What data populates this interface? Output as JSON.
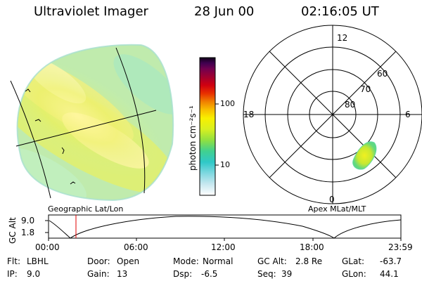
{
  "header": {
    "instrument": "Ultraviolet Imager",
    "date": "28 Jun 00",
    "time": "02:16:05 UT"
  },
  "image_panel": {
    "caption": "Geographic Lat/Lon"
  },
  "colorbar": {
    "unit": "photon cm⁻²s⁻¹",
    "ticks": [
      "100",
      "10"
    ],
    "colors": [
      "#ffffff",
      "#c8e8f0",
      "#80d8e0",
      "#30c8c8",
      "#40d090",
      "#90e040",
      "#d8f020",
      "#f8f000",
      "#f8c000",
      "#f08000",
      "#e83000",
      "#d00010",
      "#a00030",
      "#700050",
      "#400050",
      "#100018"
    ]
  },
  "polar_plot": {
    "caption": "Apex MLat/MLT",
    "hour_labels": {
      "top": "12",
      "left": "18",
      "right": "6",
      "bottom": "0"
    },
    "lat_labels": [
      "60",
      "70",
      "80"
    ]
  },
  "altitude_plot": {
    "ylabel": "GC Alt",
    "yticks": [
      "9.0",
      "1.8"
    ],
    "xticks": [
      "00:00",
      "06:00",
      "12:00",
      "18:00",
      "23:59"
    ]
  },
  "status": {
    "flt_label": "Flt:",
    "flt_value": "LBHL",
    "ip_label": "IP:",
    "ip_value": "9.0",
    "door_label": "Door:",
    "door_value": "Open",
    "gain_label": "Gain:",
    "gain_value": "13",
    "mode_label": "Mode:",
    "mode_value": "Normal",
    "dsp_label": "Dsp:",
    "dsp_value": "-6.5",
    "gcalt_label": "GC Alt:",
    "gcalt_value": "2.8 Re",
    "seq_label": "Seq:",
    "seq_value": "39",
    "glat_label": "GLat:",
    "glat_value": "-63.7",
    "glon_label": "GLon:",
    "glon_value": "44.1"
  }
}
